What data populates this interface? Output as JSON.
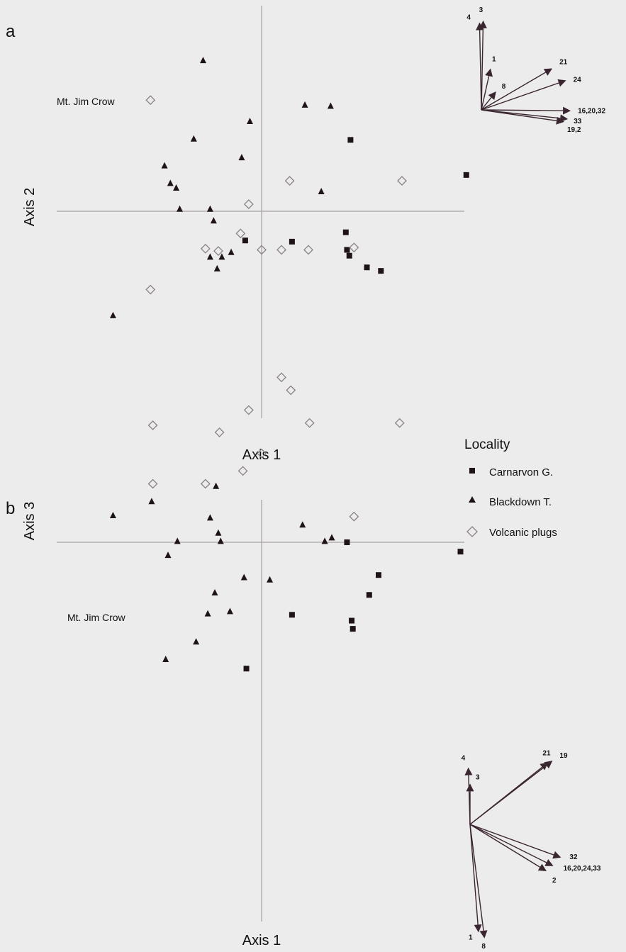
{
  "chart_data": [
    {
      "panel_label": "a",
      "type": "scatter",
      "xlabel": "Axis 1",
      "ylabel": "Axis 2",
      "annotation": "Mt. Jim Crow",
      "series": [
        {
          "name": "Carnarvon G.",
          "marker": "square",
          "points": [
            [
              0.76,
              0.61
            ],
            [
              1.75,
              0.31
            ],
            [
              0.72,
              -0.18
            ],
            [
              0.26,
              -0.26
            ],
            [
              0.73,
              -0.33
            ],
            [
              0.75,
              -0.38
            ],
            [
              0.9,
              -0.48
            ],
            [
              1.02,
              -0.51
            ],
            [
              -0.14,
              -0.25
            ]
          ]
        },
        {
          "name": "Blackdown T.",
          "marker": "triangle",
          "points": [
            [
              -0.5,
              1.29
            ],
            [
              0.37,
              0.91
            ],
            [
              0.59,
              0.9
            ],
            [
              -0.1,
              0.77
            ],
            [
              -0.58,
              0.62
            ],
            [
              -0.17,
              0.46
            ],
            [
              -0.83,
              0.39
            ],
            [
              -0.78,
              0.24
            ],
            [
              -0.73,
              0.2
            ],
            [
              0.51,
              0.17
            ],
            [
              -0.7,
              0.02
            ],
            [
              -0.44,
              0.02
            ],
            [
              -0.41,
              -0.08
            ],
            [
              -0.26,
              -0.35
            ],
            [
              -0.34,
              -0.39
            ],
            [
              -0.44,
              -0.39
            ],
            [
              -0.38,
              -0.49
            ],
            [
              -1.27,
              -0.89
            ]
          ]
        },
        {
          "name": "Volcanic plugs",
          "marker": "diamond",
          "points": [
            [
              -0.95,
              0.95
            ],
            [
              0.24,
              0.26
            ],
            [
              1.2,
              0.26
            ],
            [
              -0.11,
              0.06
            ],
            [
              -0.18,
              -0.19
            ],
            [
              -0.48,
              -0.32
            ],
            [
              -0.37,
              -0.34
            ],
            [
              0.0,
              -0.33
            ],
            [
              0.17,
              -0.33
            ],
            [
              0.4,
              -0.33
            ],
            [
              0.79,
              -0.31
            ],
            [
              -0.95,
              -0.67
            ]
          ]
        }
      ],
      "biplot_vectors": [
        {
          "label": "4",
          "dx": -0.02,
          "dy": 0.95
        },
        {
          "label": "3",
          "dx": 0.02,
          "dy": 0.97
        },
        {
          "label": "1",
          "dx": 0.1,
          "dy": 0.45
        },
        {
          "label": "8",
          "dx": 0.16,
          "dy": 0.2
        },
        {
          "label": "21",
          "dx": 0.77,
          "dy": 0.45
        },
        {
          "label": "24",
          "dx": 0.92,
          "dy": 0.32
        },
        {
          "label": "16,20,32",
          "dx": 0.97,
          "dy": -0.01
        },
        {
          "label": "33",
          "dx": 0.94,
          "dy": -0.1
        },
        {
          "label": "19,2",
          "dx": 0.9,
          "dy": -0.13
        }
      ]
    },
    {
      "panel_label": "b",
      "type": "scatter",
      "xlabel": "Axis 1",
      "ylabel": "Axis 3",
      "annotation": "Mt. Jim Crow",
      "series": [
        {
          "name": "Carnarvon G.",
          "marker": "square",
          "points": [
            [
              1.7,
              -0.08
            ],
            [
              1.0,
              -0.28
            ],
            [
              0.73,
              0.0
            ],
            [
              0.92,
              -0.45
            ],
            [
              0.77,
              -0.67
            ],
            [
              0.78,
              -0.74
            ],
            [
              0.26,
              -0.62
            ],
            [
              -0.13,
              -1.08
            ]
          ]
        },
        {
          "name": "Blackdown T.",
          "marker": "triangle",
          "points": [
            [
              -1.27,
              0.23
            ],
            [
              -0.94,
              0.35
            ],
            [
              -0.39,
              0.48
            ],
            [
              -0.44,
              0.21
            ],
            [
              -0.37,
              0.08
            ],
            [
              -0.35,
              0.01
            ],
            [
              -0.72,
              0.01
            ],
            [
              -0.8,
              -0.11
            ],
            [
              -0.15,
              -0.3
            ],
            [
              0.07,
              -0.32
            ],
            [
              -0.4,
              -0.43
            ],
            [
              -0.46,
              -0.61
            ],
            [
              -0.27,
              -0.59
            ],
            [
              -0.56,
              -0.85
            ],
            [
              -0.82,
              -1.0
            ],
            [
              0.35,
              0.15
            ],
            [
              0.54,
              0.01
            ],
            [
              0.6,
              0.04
            ]
          ]
        },
        {
          "name": "Volcanic plugs",
          "marker": "diamond",
          "points": [
            [
              0.17,
              1.41
            ],
            [
              0.25,
              1.3
            ],
            [
              -0.11,
              1.13
            ],
            [
              0.41,
              1.02
            ],
            [
              1.18,
              1.02
            ],
            [
              -0.93,
              1.0
            ],
            [
              -0.36,
              0.94
            ],
            [
              0.0,
              0.76
            ],
            [
              -0.16,
              0.61
            ],
            [
              -0.93,
              0.5
            ],
            [
              -0.48,
              0.5
            ],
            [
              0.79,
              0.22
            ]
          ]
        }
      ],
      "biplot_vectors": [
        {
          "label": "4",
          "dx": -0.02,
          "dy": 0.67
        },
        {
          "label": "3",
          "dx": 0.0,
          "dy": 0.48
        },
        {
          "label": "21",
          "dx": 0.92,
          "dy": 0.73
        },
        {
          "label": "19",
          "dx": 0.97,
          "dy": 0.75
        },
        {
          "label": "32",
          "dx": 1.07,
          "dy": -0.39
        },
        {
          "label": "16,20,24,33",
          "dx": 0.98,
          "dy": -0.49
        },
        {
          "label": "2",
          "dx": 0.9,
          "dy": -0.55
        },
        {
          "label": "1",
          "dx": 0.1,
          "dy": -1.27
        },
        {
          "label": "8",
          "dx": 0.17,
          "dy": -1.34
        }
      ]
    }
  ],
  "legend": {
    "title": "Locality",
    "items": [
      {
        "label": "Carnarvon G.",
        "marker": "square"
      },
      {
        "label": "Blackdown T.",
        "marker": "triangle"
      },
      {
        "label": "Volcanic plugs",
        "marker": "diamond"
      }
    ]
  },
  "colors": {
    "background": "#ececec",
    "axis_line": "#a59fa6",
    "marker_fill": "#1e1418",
    "diamond_stroke": "#8a8088",
    "vector": "#3a2630"
  }
}
